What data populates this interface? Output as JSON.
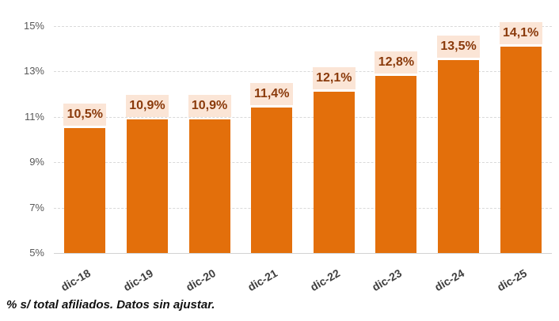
{
  "chart_data": {
    "type": "bar",
    "title": "",
    "categories": [
      "dic-18",
      "dic-19",
      "dic-20",
      "dic-21",
      "dic-22",
      "dic-23",
      "dic-24",
      "dic-25"
    ],
    "values": [
      10.5,
      10.9,
      10.9,
      11.4,
      12.1,
      12.8,
      13.5,
      14.1
    ],
    "value_labels": [
      "10,5%",
      "10,9%",
      "10,9%",
      "11,4%",
      "12,1%",
      "12,8%",
      "13,5%",
      "14,1%"
    ],
    "y_ticks": [
      5,
      7,
      9,
      11,
      13,
      15
    ],
    "y_tick_labels": [
      "5%",
      "7%",
      "9%",
      "11%",
      "13%",
      "15%"
    ],
    "ylim": [
      5,
      15
    ],
    "xlabel": "",
    "ylabel": "",
    "legend": "none",
    "grid": "horizontal-dashed",
    "colors": {
      "bar": "#e36f0b",
      "value_label_bg": "#fbe5d6",
      "value_label_text": "#8a3a0b",
      "gridline": "#d9d9d9",
      "axis_line": "#d2d2d2",
      "y_tick_text": "#595959",
      "x_tick_text": "#3f3f3f"
    }
  },
  "footnote": "% s/ total afiliados. Datos sin ajustar."
}
